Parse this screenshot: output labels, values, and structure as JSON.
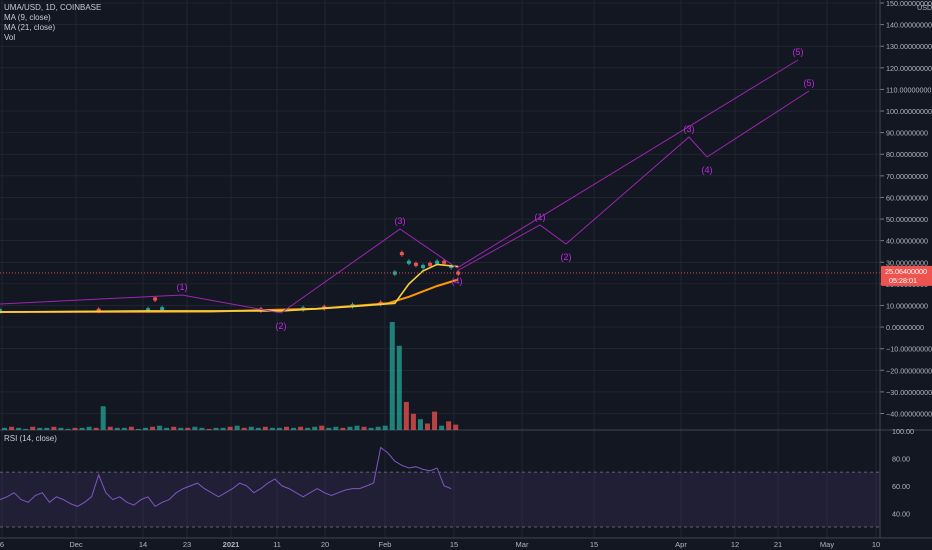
{
  "header": {
    "symbol": "UMA/USD, 1D, COINBASE",
    "indicators": [
      "MA (9, close)",
      "MA (21, close)",
      "Vol"
    ],
    "currency": "USD"
  },
  "rsi": {
    "label": "RSI (14, close)",
    "ticks": [
      "100.00",
      "80.00",
      "60.00",
      "40.00"
    ],
    "upper": 70,
    "lower": 30
  },
  "price_badge": {
    "price": "25.06400000",
    "countdown": "05:28:01"
  },
  "colors": {
    "background": "#131722",
    "up": "#26a69a",
    "down": "#ef5350",
    "ma9": "#f5d142",
    "ma21": "#ff9800",
    "wave": "#9c27b0",
    "wave_label": "#c02be0",
    "rsi": "#7e57c2",
    "grid": "#2a2e39"
  },
  "chart_data": {
    "type": "candlestick",
    "y_axis_ticks": [
      "150.00000000",
      "140.00000000",
      "130.00000000",
      "120.00000000",
      "110.00000000",
      "100.00000000",
      "90.00000000",
      "80.00000000",
      "70.00000000",
      "60.00000000",
      "50.00000000",
      "40.00000000",
      "30.00000000",
      "20.00000000",
      "10.00000000",
      "0.00000000",
      "−10.00000000",
      "−20.00000000",
      "−30.00000000",
      "−40.00000000"
    ],
    "ylim": [
      -46,
      150
    ],
    "x_axis_ticks": [
      "6",
      "Dec",
      "14",
      "23",
      "2021",
      "11",
      "20",
      "Feb",
      "15",
      "Mar",
      "15",
      "Apr",
      "12",
      "21",
      "May",
      "10"
    ],
    "price_path": [
      [
        0,
        7.5
      ],
      [
        14,
        7.8
      ],
      [
        21,
        8
      ],
      [
        22,
        13
      ],
      [
        23,
        8.5
      ],
      [
        37,
        8
      ],
      [
        43,
        8.5
      ],
      [
        46,
        9
      ],
      [
        50,
        10
      ],
      [
        54,
        11
      ],
      [
        56,
        25
      ],
      [
        57,
        34
      ],
      [
        58,
        30
      ],
      [
        59,
        29
      ],
      [
        60,
        28
      ],
      [
        61,
        29
      ],
      [
        62,
        30
      ],
      [
        63,
        30
      ],
      [
        64,
        28
      ],
      [
        65,
        25
      ]
    ],
    "ma9": [
      [
        0,
        7
      ],
      [
        20,
        7.5
      ],
      [
        40,
        7.5
      ],
      [
        50,
        9.5
      ],
      [
        56,
        11
      ],
      [
        58,
        20
      ],
      [
        60,
        26
      ],
      [
        62,
        29
      ],
      [
        65,
        28
      ]
    ],
    "ma21": [
      [
        0,
        7
      ],
      [
        30,
        7.2
      ],
      [
        45,
        8.5
      ],
      [
        55,
        11
      ],
      [
        58,
        14
      ],
      [
        62,
        19
      ],
      [
        65,
        22
      ]
    ],
    "volume": [
      2,
      3,
      2,
      1,
      3,
      2,
      2,
      3,
      2,
      1,
      2,
      2,
      3,
      2,
      22,
      3,
      2,
      2,
      3,
      1,
      2,
      3,
      4,
      2,
      3,
      2,
      2,
      3,
      2,
      1,
      2,
      2,
      3,
      4,
      2,
      3,
      2,
      3,
      2,
      2,
      3,
      2,
      3,
      2,
      3,
      4,
      2,
      3,
      2,
      3,
      4,
      3,
      2,
      3,
      4,
      100,
      78,
      26,
      15,
      10,
      6,
      17,
      4,
      8,
      5
    ],
    "volume_up": [
      1,
      0,
      1,
      1,
      0,
      1,
      1,
      0,
      1,
      1,
      0,
      1,
      1,
      0,
      1,
      0,
      1,
      1,
      0,
      1,
      1,
      0,
      1,
      1,
      0,
      1,
      0,
      1,
      1,
      0,
      1,
      1,
      0,
      1,
      0,
      1,
      1,
      0,
      1,
      1,
      0,
      1,
      0,
      1,
      1,
      0,
      1,
      1,
      0,
      1,
      1,
      0,
      1,
      1,
      1,
      1,
      1,
      0,
      0,
      1,
      0,
      0,
      1,
      0,
      0
    ],
    "rsi_values": [
      50,
      52,
      55,
      50,
      48,
      53,
      55,
      48,
      52,
      50,
      47,
      45,
      48,
      52,
      68,
      55,
      50,
      52,
      48,
      46,
      50,
      52,
      45,
      48,
      50,
      55,
      58,
      60,
      62,
      58,
      55,
      52,
      55,
      58,
      62,
      60,
      55,
      58,
      62,
      65,
      60,
      58,
      55,
      52,
      55,
      58,
      55,
      53,
      55,
      57,
      58,
      58,
      60,
      62,
      88,
      84,
      78,
      75,
      73,
      74,
      72,
      71,
      73,
      60,
      58
    ],
    "elliott_waves": [
      {
        "labels": [
          "(1)",
          "(2)",
          "(3)",
          "(4)",
          "(5)"
        ],
        "points": [
          [
            0,
            14
          ],
          [
            22,
            14
          ],
          [
            37,
            2
          ],
          [
            52,
            43
          ],
          [
            63,
            24
          ],
          [
            108,
            123
          ]
        ]
      },
      {
        "labels": [
          "(1)",
          "(2)",
          "(3)",
          "(4)",
          "(5)"
        ],
        "points": [
          [
            65,
            25
          ],
          [
            82,
            46
          ],
          [
            88,
            38
          ],
          [
            104,
            86
          ],
          [
            110,
            77
          ],
          [
            119,
            109
          ]
        ]
      }
    ]
  }
}
